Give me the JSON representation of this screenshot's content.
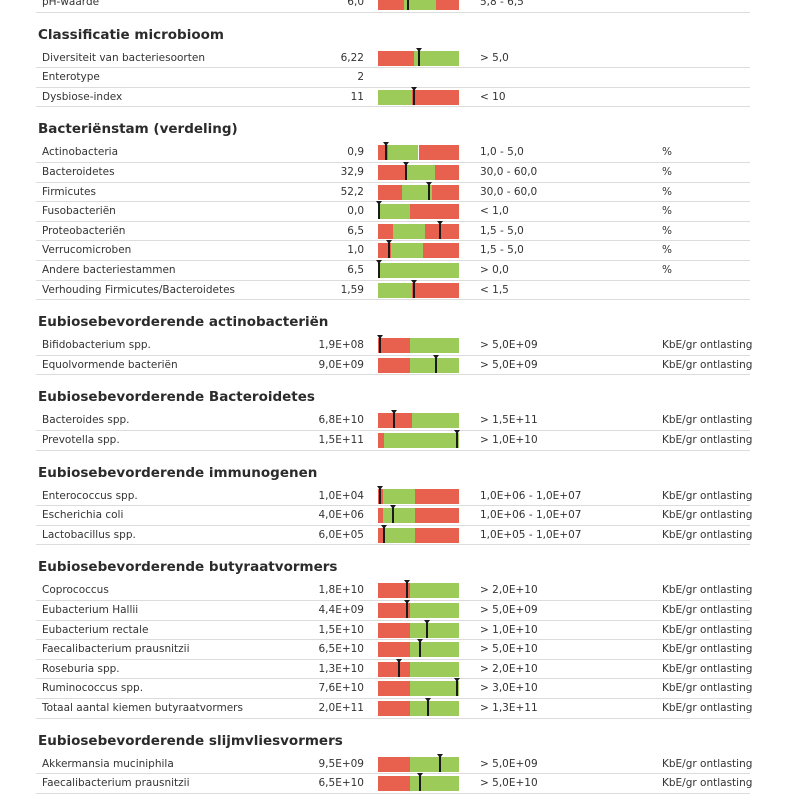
{
  "colors": {
    "red": "#e8604e",
    "green": "#9ccb5a"
  },
  "sections": [
    {
      "title": "",
      "rows": [
        {
          "name": "pH-waarde",
          "value": "6,0",
          "ref": "5,8 - 6,5",
          "unit": "",
          "bar": {
            "segments": [
              [
                "red",
                0,
                0.32
              ],
              [
                "green",
                0.32,
                0.72
              ],
              [
                "red",
                0.72,
                1
              ]
            ],
            "marker": 0.37
          }
        }
      ]
    },
    {
      "title": "Classificatie microbioom",
      "rows": [
        {
          "name": "Diversiteit van bacteriesoorten",
          "value": "6,22",
          "ref": "> 5,0",
          "unit": "",
          "bar": {
            "segments": [
              [
                "red",
                0,
                0.45
              ],
              [
                "green",
                0.45,
                1
              ]
            ],
            "marker": 0.5
          }
        },
        {
          "name": "Enterotype",
          "value": "2",
          "ref": "",
          "unit": "",
          "bar": null
        },
        {
          "name": "Dysbiose-index",
          "value": "11",
          "ref": "< 10",
          "unit": "",
          "bar": {
            "segments": [
              [
                "green",
                0,
                0.42
              ],
              [
                "red",
                0.42,
                1
              ]
            ],
            "marker": 0.44
          }
        }
      ]
    },
    {
      "title": "Bacteriënstam (verdeling)",
      "rows": [
        {
          "name": "Actinobacteria",
          "value": "0,9",
          "ref": "1,0 - 5,0",
          "unit": "%",
          "bar": {
            "segments": [
              [
                "red",
                0,
                0.12
              ],
              [
                "green",
                0.12,
                0.5
              ],
              [
                "red",
                0.5,
                1
              ]
            ],
            "marker": 0.1
          }
        },
        {
          "name": "Bacteroidetes",
          "value": "32,9",
          "ref": "30,0 - 60,0",
          "unit": "%",
          "bar": {
            "segments": [
              [
                "red",
                0,
                0.34
              ],
              [
                "green",
                0.34,
                0.7
              ],
              [
                "red",
                0.7,
                1
              ]
            ],
            "marker": 0.35
          }
        },
        {
          "name": "Firmicutes",
          "value": "52,2",
          "ref": "30,0 - 60,0",
          "unit": "%",
          "bar": {
            "segments": [
              [
                "red",
                0,
                0.3
              ],
              [
                "green",
                0.3,
                0.67
              ],
              [
                "red",
                0.67,
                1
              ]
            ],
            "marker": 0.63
          }
        },
        {
          "name": "Fusobacteriën",
          "value": "0,0",
          "ref": "< 1,0",
          "unit": "%",
          "bar": {
            "segments": [
              [
                "green",
                0,
                0.4
              ],
              [
                "red",
                0.4,
                1
              ]
            ],
            "marker": 0.0
          }
        },
        {
          "name": "Proteobacteriën",
          "value": "6,5",
          "ref": "1,5 - 5,0",
          "unit": "%",
          "bar": {
            "segments": [
              [
                "red",
                0,
                0.18
              ],
              [
                "green",
                0.18,
                0.58
              ],
              [
                "red",
                0.58,
                1
              ]
            ],
            "marker": 0.77
          }
        },
        {
          "name": "Verrucomicroben",
          "value": "1,0",
          "ref": "1,5 - 5,0",
          "unit": "%",
          "bar": {
            "segments": [
              [
                "red",
                0,
                0.16
              ],
              [
                "green",
                0.16,
                0.55
              ],
              [
                "red",
                0.55,
                1
              ]
            ],
            "marker": 0.14
          }
        },
        {
          "name": "Andere bacteriestammen",
          "value": "6,5",
          "ref": "> 0,0",
          "unit": "%",
          "bar": {
            "segments": [
              [
                "green",
                0,
                1
              ]
            ],
            "marker": 0.0
          }
        },
        {
          "name": "Verhouding Firmicutes/Bacteroidetes",
          "value": "1,59",
          "ref": "< 1,5",
          "unit": "",
          "bar": {
            "segments": [
              [
                "green",
                0,
                0.42
              ],
              [
                "red",
                0.42,
                1
              ]
            ],
            "marker": 0.44
          }
        }
      ]
    },
    {
      "title": "Eubiosebevorderende actinobacteriën",
      "rows": [
        {
          "name": "Bifidobacterium spp.",
          "value": "1,9E+08",
          "ref": "> 5,0E+09",
          "unit": "KbE/gr ontlasting",
          "bar": {
            "segments": [
              [
                "red",
                0,
                0.4
              ],
              [
                "green",
                0.4,
                1
              ]
            ],
            "marker": 0.02
          }
        },
        {
          "name": "Equolvormende bacteriën",
          "value": "9,0E+09",
          "ref": "> 5,0E+09",
          "unit": "KbE/gr ontlasting",
          "bar": {
            "segments": [
              [
                "red",
                0,
                0.4
              ],
              [
                "green",
                0.4,
                1
              ]
            ],
            "marker": 0.72
          }
        }
      ]
    },
    {
      "title": "Eubiosebevorderende Bacteroidetes",
      "rows": [
        {
          "name": "Bacteroides spp.",
          "value": "6,8E+10",
          "ref": "> 1,5E+11",
          "unit": "KbE/gr ontlasting",
          "bar": {
            "segments": [
              [
                "red",
                0,
                0.42
              ],
              [
                "green",
                0.42,
                1
              ]
            ],
            "marker": 0.2
          }
        },
        {
          "name": "Prevotella spp.",
          "value": "1,5E+11",
          "ref": "> 1,0E+10",
          "unit": "KbE/gr ontlasting",
          "bar": {
            "segments": [
              [
                "red",
                0,
                0.08
              ],
              [
                "green",
                0.08,
                1
              ]
            ],
            "marker": 0.98
          }
        }
      ]
    },
    {
      "title": "Eubiosebevorderende immunogenen",
      "rows": [
        {
          "name": "Enterococcus spp.",
          "value": "1,0E+04",
          "ref": "1,0E+06 - 1,0E+07",
          "unit": "KbE/gr ontlasting",
          "bar": {
            "segments": [
              [
                "red",
                0,
                0.06
              ],
              [
                "green",
                0.06,
                0.46
              ],
              [
                "red",
                0.46,
                1
              ]
            ],
            "marker": 0.02
          }
        },
        {
          "name": "Escherichia coli",
          "value": "4,0E+06",
          "ref": "1,0E+06 - 1,0E+07",
          "unit": "KbE/gr ontlasting",
          "bar": {
            "segments": [
              [
                "red",
                0,
                0.06
              ],
              [
                "green",
                0.06,
                0.46
              ],
              [
                "red",
                0.46,
                1
              ]
            ],
            "marker": 0.18
          }
        },
        {
          "name": "Lactobacillus spp.",
          "value": "6,0E+05",
          "ref": "1,0E+05 - 1,0E+07",
          "unit": "KbE/gr ontlasting",
          "bar": {
            "segments": [
              [
                "red",
                0,
                0.06
              ],
              [
                "green",
                0.06,
                0.46
              ],
              [
                "red",
                0.46,
                1
              ]
            ],
            "marker": 0.08
          }
        }
      ]
    },
    {
      "title": "Eubiosebevorderende butyraatvormers",
      "rows": [
        {
          "name": "Coprococcus",
          "value": "1,8E+10",
          "ref": "> 2,0E+10",
          "unit": "KbE/gr ontlasting",
          "bar": {
            "segments": [
              [
                "red",
                0,
                0.4
              ],
              [
                "green",
                0.4,
                1
              ]
            ],
            "marker": 0.36
          }
        },
        {
          "name": "Eubacterium Hallii",
          "value": "4,4E+09",
          "ref": "> 5,0E+09",
          "unit": "KbE/gr ontlasting",
          "bar": {
            "segments": [
              [
                "red",
                0,
                0.4
              ],
              [
                "green",
                0.4,
                1
              ]
            ],
            "marker": 0.36
          }
        },
        {
          "name": "Eubacterium rectale",
          "value": "1,5E+10",
          "ref": "> 1,0E+10",
          "unit": "KbE/gr ontlasting",
          "bar": {
            "segments": [
              [
                "red",
                0,
                0.4
              ],
              [
                "green",
                0.4,
                1
              ]
            ],
            "marker": 0.6
          }
        },
        {
          "name": "Faecalibacterium prausnitzii",
          "value": "6,5E+10",
          "ref": "> 5,0E+10",
          "unit": "KbE/gr ontlasting",
          "bar": {
            "segments": [
              [
                "red",
                0,
                0.4
              ],
              [
                "green",
                0.4,
                1
              ]
            ],
            "marker": 0.52
          }
        },
        {
          "name": "Roseburia spp.",
          "value": "1,3E+10",
          "ref": "> 2,0E+10",
          "unit": "KbE/gr ontlasting",
          "bar": {
            "segments": [
              [
                "red",
                0,
                0.4
              ],
              [
                "green",
                0.4,
                1
              ]
            ],
            "marker": 0.26
          }
        },
        {
          "name": "Ruminococcus spp.",
          "value": "7,6E+10",
          "ref": "> 3,0E+10",
          "unit": "KbE/gr ontlasting",
          "bar": {
            "segments": [
              [
                "red",
                0,
                0.4
              ],
              [
                "green",
                0.4,
                1
              ]
            ],
            "marker": 0.98
          }
        },
        {
          "name": "Totaal aantal kiemen butyraatvormers",
          "value": "2,0E+11",
          "ref": "> 1,3E+11",
          "unit": "KbE/gr ontlasting",
          "bar": {
            "segments": [
              [
                "red",
                0,
                0.4
              ],
              [
                "green",
                0.4,
                1
              ]
            ],
            "marker": 0.62
          }
        }
      ]
    },
    {
      "title": "Eubiosebevorderende slijmvliesvormers",
      "rows": [
        {
          "name": "Akkermansia muciniphila",
          "value": "9,5E+09",
          "ref": "> 5,0E+09",
          "unit": "KbE/gr ontlasting",
          "bar": {
            "segments": [
              [
                "red",
                0,
                0.4
              ],
              [
                "green",
                0.4,
                1
              ]
            ],
            "marker": 0.76
          }
        },
        {
          "name": "Faecalibacterium prausnitzii",
          "value": "6,5E+10",
          "ref": "> 5,0E+10",
          "unit": "KbE/gr ontlasting",
          "bar": {
            "segments": [
              [
                "red",
                0,
                0.4
              ],
              [
                "green",
                0.4,
                1
              ]
            ],
            "marker": 0.52
          }
        }
      ]
    }
  ]
}
